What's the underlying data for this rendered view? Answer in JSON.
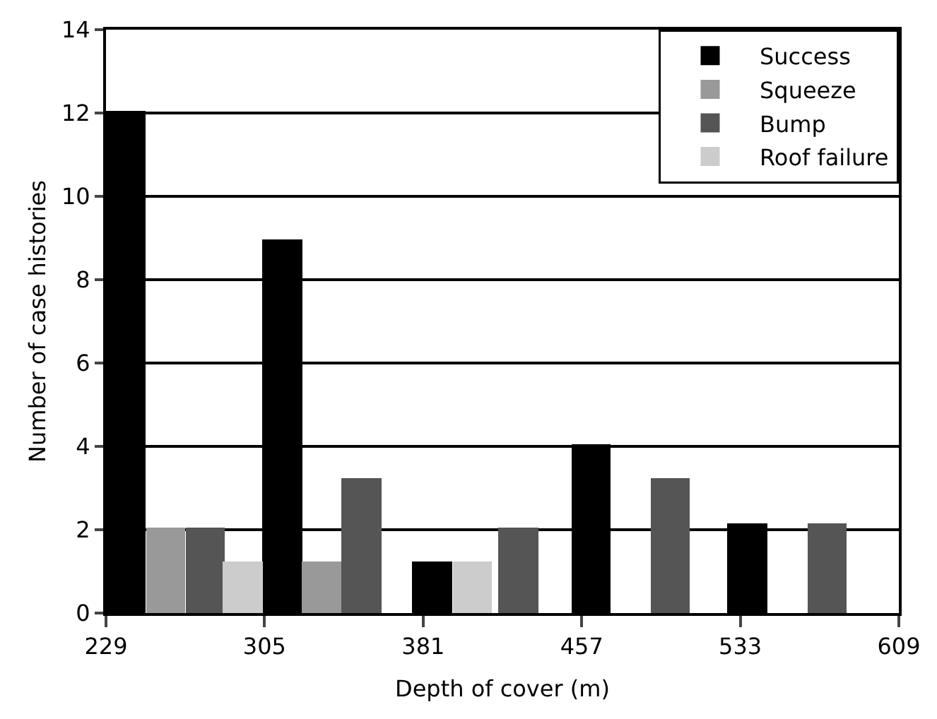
{
  "chart_data": {
    "type": "bar",
    "xlabel": "Depth of cover (m)",
    "ylabel": "Number of case histories",
    "xlim": [
      229,
      609
    ],
    "xticks": [
      229,
      305,
      381,
      457,
      533,
      609
    ],
    "ylim": [
      0,
      14
    ],
    "yticks": [
      0,
      2,
      4,
      6,
      8,
      10,
      12,
      14
    ],
    "grid": "y",
    "legend": "top right",
    "series": [
      {
        "name": "Success",
        "color": "#000000",
        "x": [
          239,
          314,
          386,
          462,
          537
        ],
        "values": [
          12,
          8.9,
          1.2,
          4,
          2.1
        ]
      },
      {
        "name": "Squeeze",
        "color": "#999999",
        "x": [
          258,
          333
        ],
        "values": [
          2,
          1.2
        ]
      },
      {
        "name": "Bump",
        "color": "#555555",
        "x": [
          277,
          352,
          427,
          500,
          575
        ],
        "values": [
          2,
          3.2,
          2,
          3.2,
          2.1
        ]
      },
      {
        "name": "Roof failure",
        "color": "#cccccc",
        "x": [
          295,
          405
        ],
        "values": [
          1.2,
          1.2
        ]
      }
    ]
  }
}
